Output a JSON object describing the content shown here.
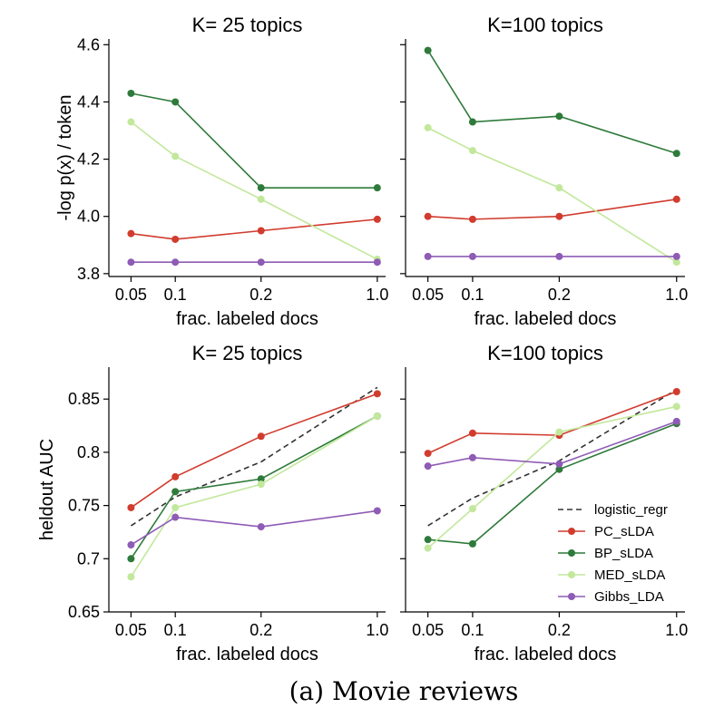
{
  "caption": "(a) Movie reviews",
  "colors": {
    "logistic_regr": "#333333",
    "PC_sLDA": "#d13c2e",
    "BP_sLDA": "#2e7a3a",
    "MED_sLDA": "#c2e89b",
    "Gibbs_LDA": "#8e5bb5"
  },
  "chart_data": [
    {
      "type": "line",
      "title": "K= 25 topics",
      "xlabel": "frac. labeled docs",
      "ylabel": "-log p(x) / token",
      "x": [
        0.05,
        0.1,
        0.2,
        1.0
      ],
      "xtick_labels": [
        "0.05",
        "0.1",
        "0.2",
        "1.0"
      ],
      "ylim": [
        3.79,
        4.62
      ],
      "yticks": [
        3.8,
        4.0,
        4.2,
        4.4,
        4.6
      ],
      "ytick_labels": [
        "3.8",
        "4.0",
        "4.2",
        "4.4",
        "4.6"
      ],
      "series": [
        {
          "name": "PC_sLDA",
          "values": [
            3.94,
            3.92,
            3.95,
            3.99
          ]
        },
        {
          "name": "BP_sLDA",
          "values": [
            4.43,
            4.4,
            4.1,
            4.1
          ]
        },
        {
          "name": "MED_sLDA",
          "values": [
            4.33,
            4.21,
            4.06,
            3.85
          ]
        },
        {
          "name": "Gibbs_LDA",
          "values": [
            3.84,
            3.84,
            3.84,
            3.84
          ]
        }
      ]
    },
    {
      "type": "line",
      "title": "K=100 topics",
      "xlabel": "frac. labeled docs",
      "ylabel": "",
      "x": [
        0.05,
        0.1,
        0.2,
        1.0
      ],
      "xtick_labels": [
        "0.05",
        "0.1",
        "0.2",
        "1.0"
      ],
      "ylim": [
        3.79,
        4.62
      ],
      "yticks": [
        3.8,
        4.0,
        4.2,
        4.4,
        4.6
      ],
      "ytick_labels": [
        "",
        "",
        "",
        "",
        ""
      ],
      "series": [
        {
          "name": "PC_sLDA",
          "values": [
            4.0,
            3.99,
            4.0,
            4.06
          ]
        },
        {
          "name": "BP_sLDA",
          "values": [
            4.58,
            4.33,
            4.35,
            4.22
          ]
        },
        {
          "name": "MED_sLDA",
          "values": [
            4.31,
            4.23,
            4.1,
            3.84
          ]
        },
        {
          "name": "Gibbs_LDA",
          "values": [
            3.86,
            3.86,
            3.86,
            3.86
          ]
        }
      ]
    },
    {
      "type": "line",
      "title": "K= 25 topics",
      "xlabel": "frac. labeled docs",
      "ylabel": "heldout AUC",
      "x": [
        0.05,
        0.1,
        0.2,
        1.0
      ],
      "xtick_labels": [
        "0.05",
        "0.1",
        "0.2",
        "1.0"
      ],
      "ylim": [
        0.65,
        0.88
      ],
      "yticks": [
        0.65,
        0.7,
        0.75,
        0.8,
        0.85
      ],
      "ytick_labels": [
        "0.65",
        "0.7",
        "0.75",
        "0.8",
        "0.85"
      ],
      "series": [
        {
          "name": "logistic_regr",
          "values": [
            0.731,
            0.758,
            0.791,
            0.861
          ]
        },
        {
          "name": "PC_sLDA",
          "values": [
            0.748,
            0.777,
            0.815,
            0.855
          ]
        },
        {
          "name": "BP_sLDA",
          "values": [
            0.7,
            0.763,
            0.775,
            0.834
          ]
        },
        {
          "name": "MED_sLDA",
          "values": [
            0.683,
            0.748,
            0.77,
            0.834
          ]
        },
        {
          "name": "Gibbs_LDA",
          "values": [
            0.713,
            0.739,
            0.73,
            0.745
          ]
        }
      ]
    },
    {
      "type": "line",
      "title": "K=100 topics",
      "xlabel": "frac. labeled docs",
      "ylabel": "",
      "x": [
        0.05,
        0.1,
        0.2,
        1.0
      ],
      "xtick_labels": [
        "0.05",
        "0.1",
        "0.2",
        "1.0"
      ],
      "ylim": [
        0.65,
        0.88
      ],
      "yticks": [
        0.65,
        0.7,
        0.75,
        0.8,
        0.85
      ],
      "ytick_labels": [
        "",
        "",
        "",
        "",
        ""
      ],
      "legend": "lower-right",
      "series": [
        {
          "name": "logistic_regr",
          "values": [
            0.731,
            0.757,
            0.792,
            0.859
          ]
        },
        {
          "name": "PC_sLDA",
          "values": [
            0.799,
            0.818,
            0.816,
            0.857
          ]
        },
        {
          "name": "BP_sLDA",
          "values": [
            0.718,
            0.714,
            0.784,
            0.827
          ]
        },
        {
          "name": "MED_sLDA",
          "values": [
            0.71,
            0.747,
            0.819,
            0.843
          ]
        },
        {
          "name": "Gibbs_LDA",
          "values": [
            0.787,
            0.795,
            0.789,
            0.829
          ]
        }
      ]
    }
  ]
}
